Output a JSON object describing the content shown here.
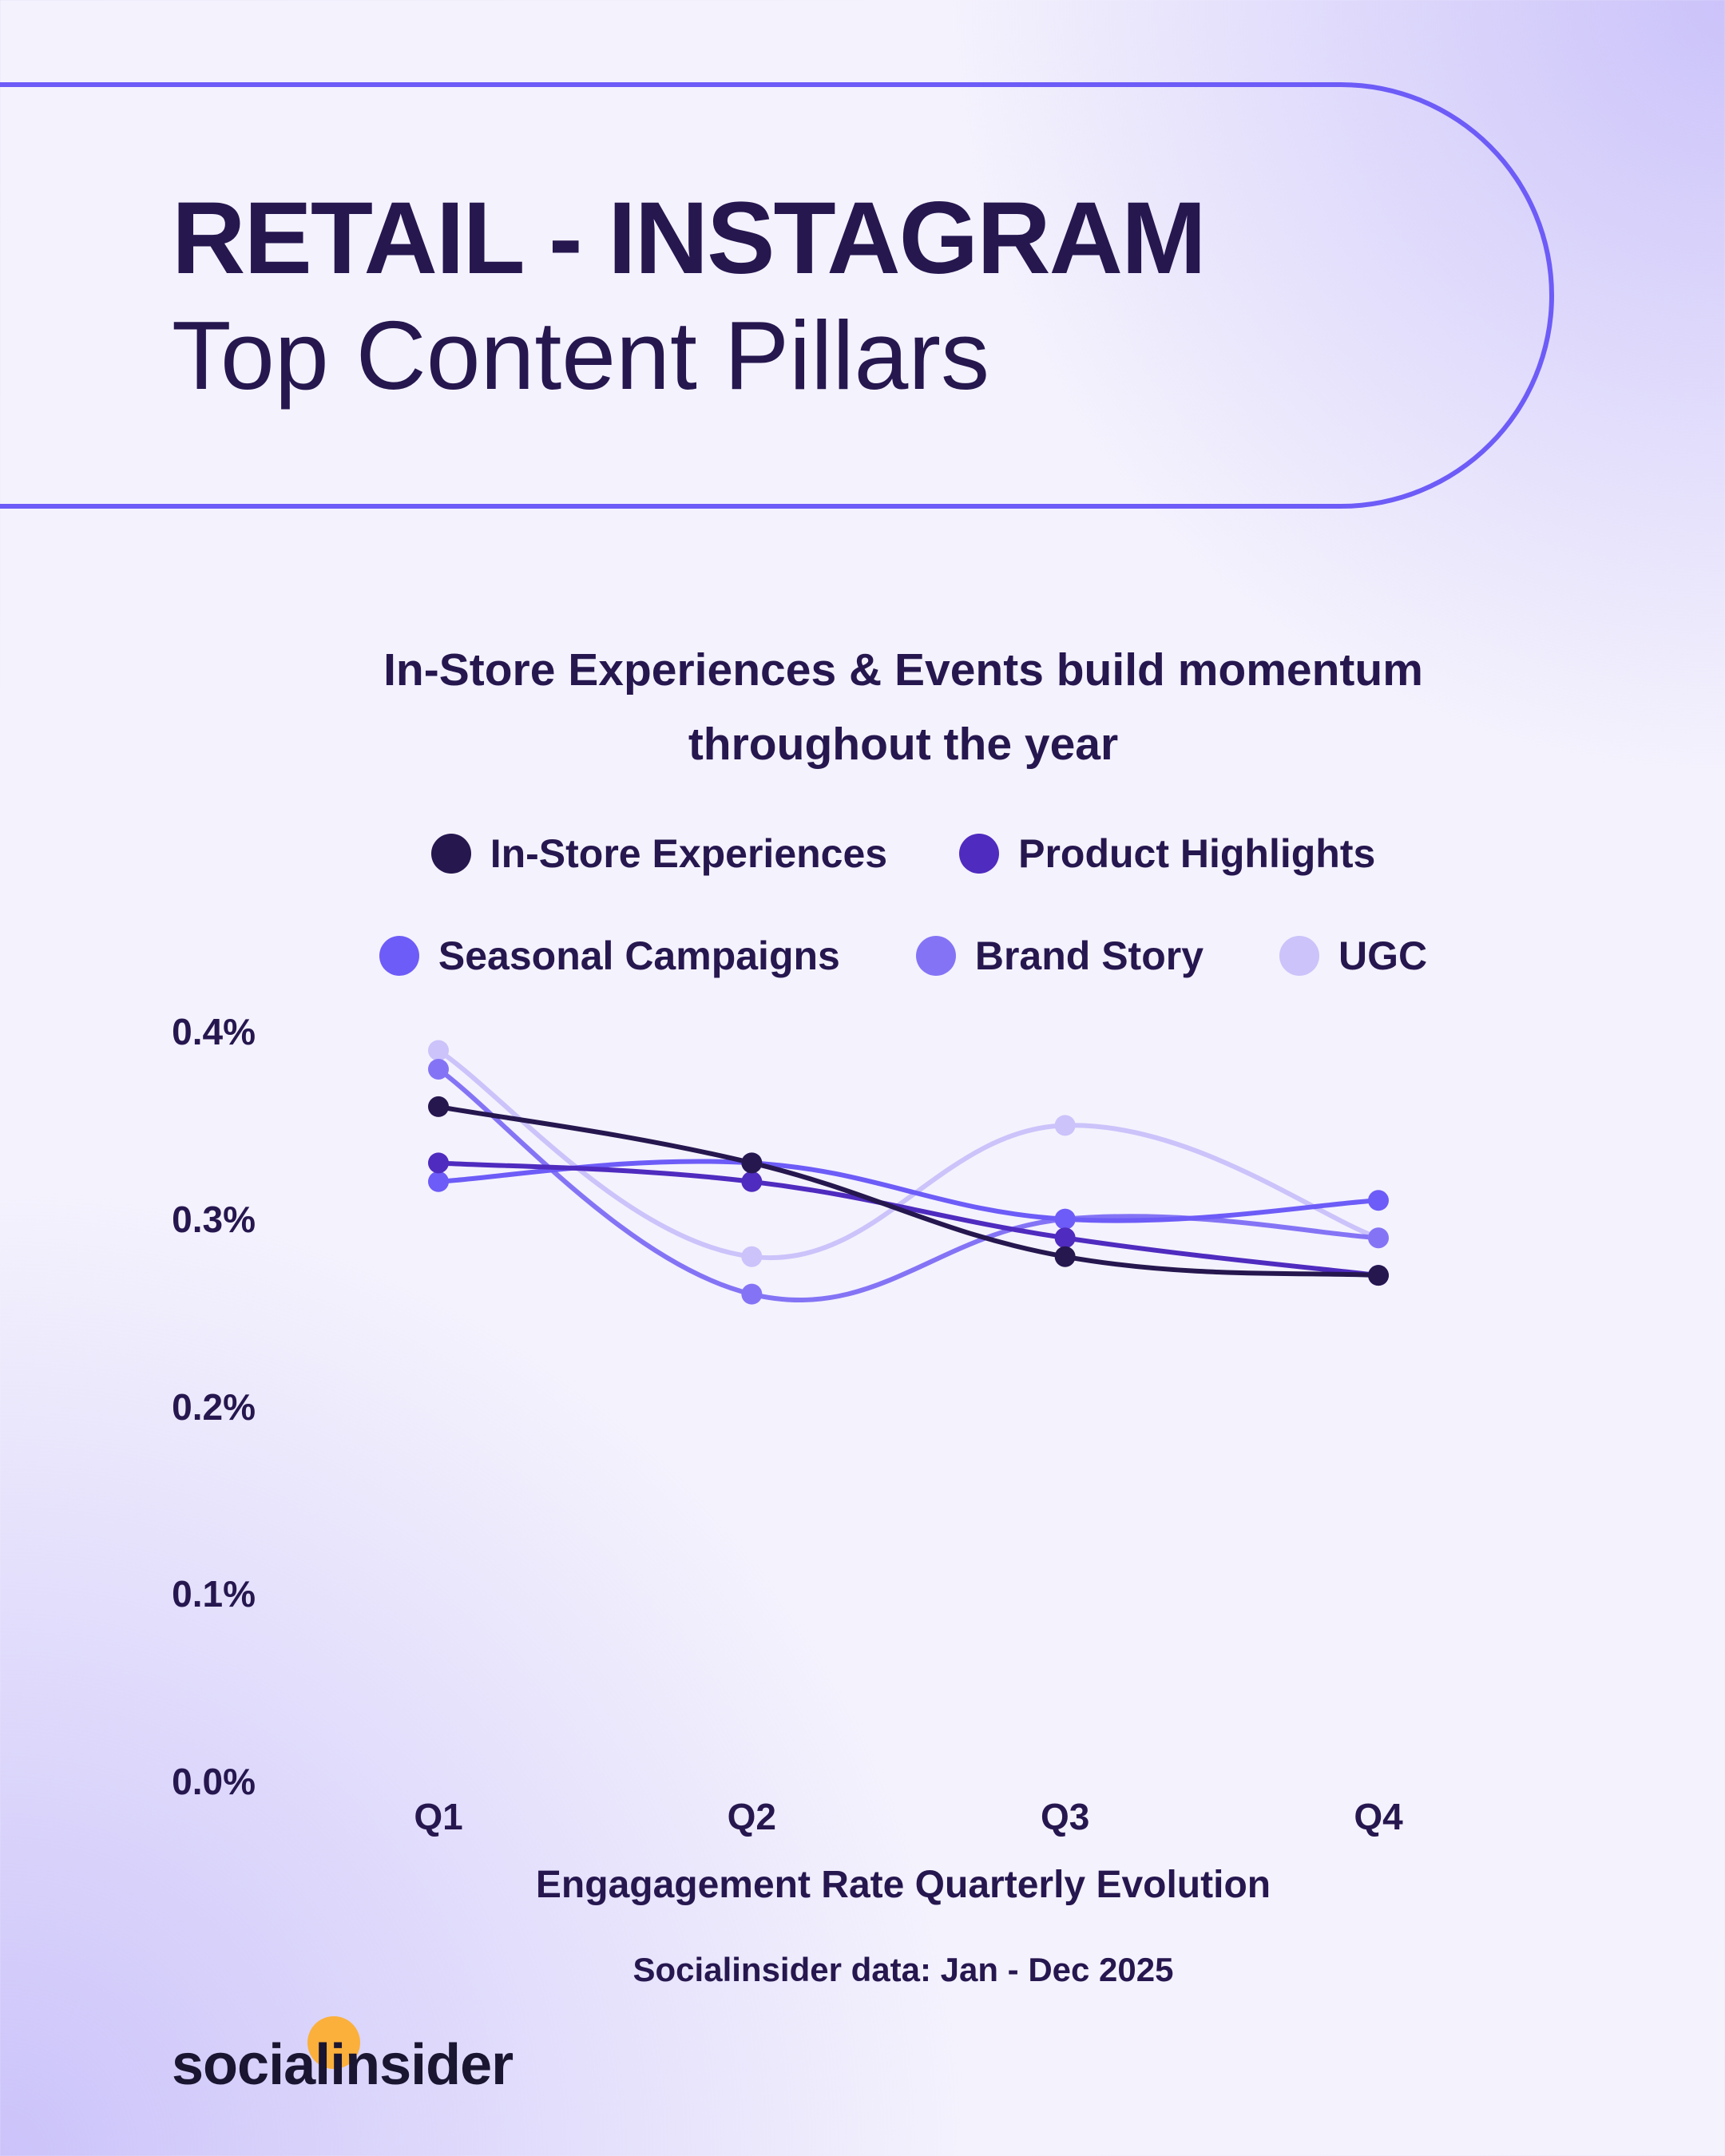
{
  "header": {
    "title": "RETAIL - INSTAGRAM",
    "subtitle": "Top Content Pillars"
  },
  "chart_data": {
    "type": "line",
    "title": "In-Store Experiences & Events build momentum throughout the year",
    "title_lines": [
      "In-Store Experiences & Events build momentum",
      "throughout the year"
    ],
    "categories": [
      "Q1",
      "Q2",
      "Q3",
      "Q4"
    ],
    "xlabel": "Engagagement Rate Quarterly Evolution",
    "ylabel": "",
    "yticks": [
      "0.0%",
      "0.1%",
      "0.2%",
      "0.3%",
      "0.4%"
    ],
    "ylim": [
      0,
      0.4
    ],
    "unit": "%",
    "grid": false,
    "legend": "top",
    "smooth": true,
    "series": [
      {
        "name": "In-Store Experiences",
        "color": "#26174f",
        "values": [
          0.36,
          0.33,
          0.28,
          0.27
        ]
      },
      {
        "name": "Product Highlights",
        "color": "#4f2bbf",
        "values": [
          0.33,
          0.32,
          0.29,
          0.27
        ]
      },
      {
        "name": "Seasonal Campaigns",
        "color": "#6d5cf7",
        "values": [
          0.32,
          0.33,
          0.3,
          0.31
        ]
      },
      {
        "name": "Brand Story",
        "color": "#8474f5",
        "values": [
          0.38,
          0.26,
          0.3,
          0.29
        ]
      },
      {
        "name": "UGC",
        "color": "#cbc3fa",
        "values": [
          0.39,
          0.28,
          0.35,
          0.29
        ]
      }
    ]
  },
  "source": "Socialinsider data: Jan - Dec 2025",
  "logo": {
    "text": "socialinsider",
    "accent": "#fbb03b"
  }
}
